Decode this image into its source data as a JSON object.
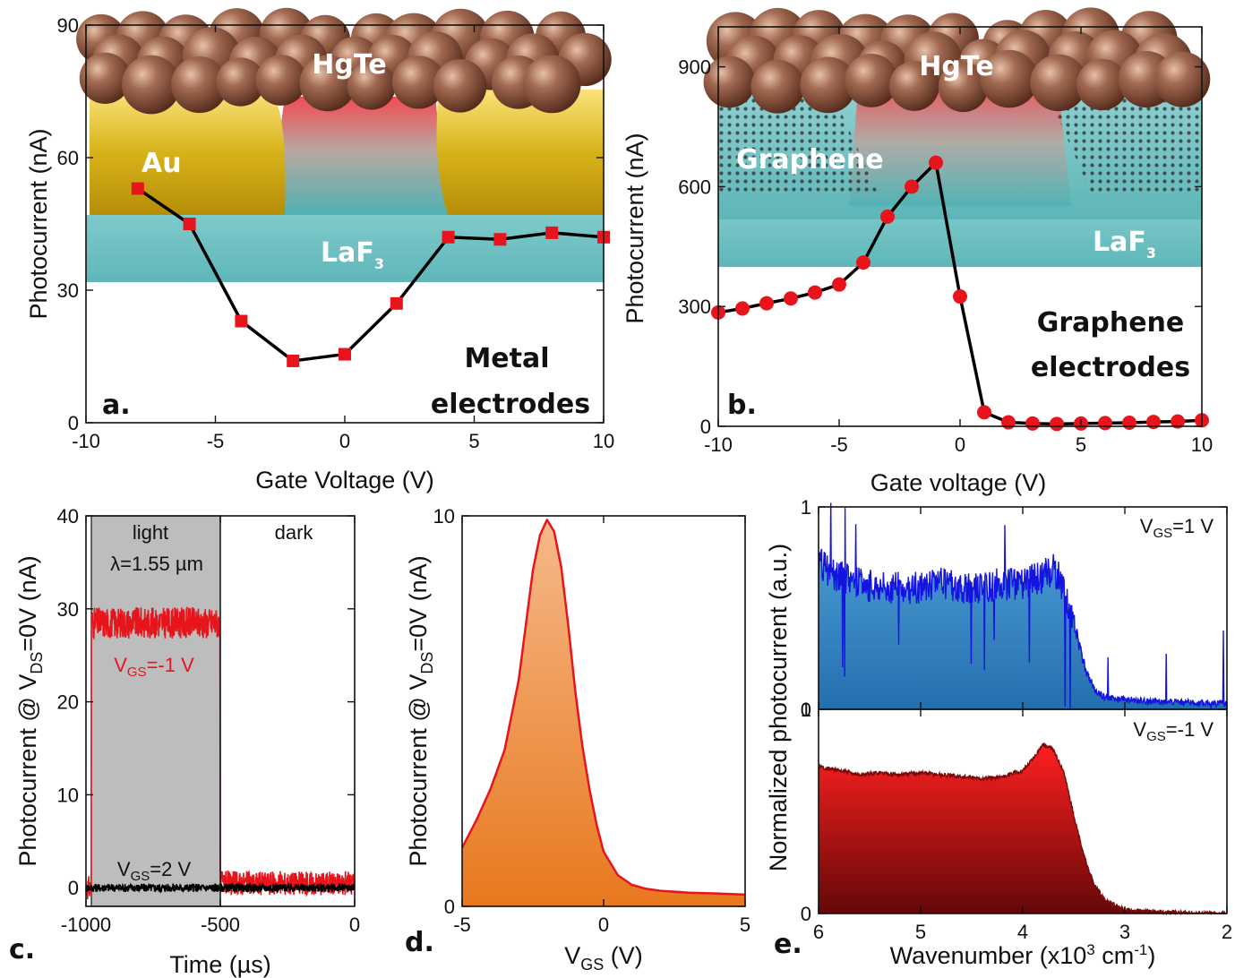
{
  "chart_data": [
    {
      "id": "a",
      "type": "line",
      "panel_label": "a.",
      "xlabel": "Gate Voltage (V)",
      "ylabel": "Photocurrent (nA)",
      "xlim": [
        -10,
        10
      ],
      "ylim": [
        0,
        90
      ],
      "xticks": [
        -10,
        -5,
        0,
        5,
        10
      ],
      "yticks": [
        0,
        30,
        60,
        90
      ],
      "x": [
        -8,
        -6,
        -4,
        -2,
        0,
        2,
        4,
        6,
        8,
        10
      ],
      "y": [
        53,
        45,
        23,
        14,
        15.5,
        27,
        42,
        41.5,
        43,
        42
      ],
      "annotations": [
        "Metal",
        "electrodes"
      ],
      "materials": {
        "top": "HgTe",
        "electrode": "Au",
        "substrate": "LaF",
        "substrate_sub": "3"
      },
      "colors": {
        "marker": "#e8141b",
        "line": "#000000"
      }
    },
    {
      "id": "b",
      "type": "line",
      "panel_label": "b.",
      "xlabel": "Gate voltage (V)",
      "ylabel": "Photocurrent (nA)",
      "xlim": [
        -10,
        10
      ],
      "ylim": [
        0,
        1000
      ],
      "xticks": [
        -10,
        -5,
        0,
        5,
        10
      ],
      "yticks": [
        0,
        300,
        600,
        900
      ],
      "x": [
        -10,
        -9,
        -8,
        -7,
        -6,
        -5,
        -4,
        -3,
        -2,
        -1,
        0,
        1,
        2,
        3,
        4,
        5,
        6,
        7,
        8,
        9,
        10
      ],
      "y": [
        285,
        295,
        308,
        320,
        335,
        355,
        410,
        525,
        600,
        660,
        325,
        35,
        10,
        7,
        6,
        7,
        8,
        9,
        11,
        12,
        15
      ],
      "annotations": [
        "Graphene",
        "electrodes"
      ],
      "materials": {
        "top": "HgTe",
        "electrode": "Graphene",
        "substrate": "LaF",
        "substrate_sub": "3"
      },
      "colors": {
        "marker": "#e8141b",
        "line": "#000000"
      }
    },
    {
      "id": "c",
      "type": "line",
      "panel_label": "c.",
      "xlabel": "Time (µs)",
      "ylabel_parts": [
        "Photocurrent @ V",
        "DS",
        "=0V (nA)"
      ],
      "xlim": [
        -1000,
        0
      ],
      "ylim": [
        -2,
        40
      ],
      "xticks": [
        -1000,
        -500,
        0
      ],
      "yticks": [
        0,
        10,
        20,
        30,
        40
      ],
      "regions": [
        {
          "label": "light",
          "x": [
            -980,
            -500
          ]
        },
        {
          "label": "dark",
          "x": [
            -500,
            0
          ]
        }
      ],
      "wavelength_label": "λ=1.55 µm",
      "series": [
        {
          "name_parts": [
            "V",
            "GS",
            "=-1 V"
          ],
          "segments": [
            {
              "x": [
                -1000,
                -980
              ],
              "y": 0
            },
            {
              "x": [
                -980,
                -500
              ],
              "y": 28.5
            },
            {
              "x": [
                -500,
                0
              ],
              "y": 0.5
            }
          ],
          "color": "#e8141b"
        },
        {
          "name_parts": [
            "V",
            "GS",
            "=2 V"
          ],
          "segments": [
            {
              "x": [
                -1000,
                0
              ],
              "y": 0
            }
          ],
          "color": "#000000"
        }
      ]
    },
    {
      "id": "d",
      "type": "area",
      "panel_label": "d.",
      "xlabel_parts": [
        "V",
        "GS",
        " (V)"
      ],
      "ylabel_parts": [
        "Photocurrent @ V",
        "DS",
        "=0V (nA)"
      ],
      "xlim": [
        -5,
        5
      ],
      "ylim": [
        0,
        10
      ],
      "xticks": [
        -5,
        0,
        5
      ],
      "yticks": [
        0,
        10
      ],
      "x": [
        -5,
        -4.5,
        -4,
        -3.5,
        -3,
        -2.75,
        -2.5,
        -2.25,
        -2,
        -1.75,
        -1.5,
        -1.25,
        -1,
        -0.75,
        -0.5,
        -0.25,
        0,
        0.5,
        1,
        1.5,
        2,
        3,
        4,
        5
      ],
      "y": [
        1.5,
        2.2,
        3.0,
        4.0,
        5.8,
        7.2,
        8.6,
        9.5,
        9.9,
        9.6,
        8.7,
        7.2,
        5.5,
        4.1,
        3.0,
        2.1,
        1.4,
        0.8,
        0.55,
        0.45,
        0.4,
        0.35,
        0.33,
        0.3
      ],
      "colors": {
        "line": "#e8141b",
        "fill_top": "#f2a36a",
        "fill_bottom": "#e87a22"
      }
    },
    {
      "id": "e",
      "type": "area",
      "panel_label": "e.",
      "xlabel_parts": [
        "Wavenumber (x10",
        "3",
        " cm",
        "-1",
        ")"
      ],
      "ylabel": "Normalized photocurrent (a.u.)",
      "xlim": [
        6,
        2
      ],
      "xticks": [
        6,
        5,
        4,
        3,
        2
      ],
      "series": [
        {
          "name_parts": [
            "V",
            "GS",
            "=1 V"
          ],
          "ylim": [
            0,
            1
          ],
          "yticks": [
            0,
            1
          ],
          "x": [
            6,
            5.8,
            5.6,
            5.4,
            5.2,
            5.0,
            4.8,
            4.6,
            4.4,
            4.2,
            4.0,
            3.8,
            3.7,
            3.6,
            3.5,
            3.4,
            3.3,
            3.2,
            3.0,
            2.8,
            2.6,
            2.4,
            2.2,
            2.0
          ],
          "y": [
            0.72,
            0.66,
            0.62,
            0.6,
            0.6,
            0.6,
            0.62,
            0.6,
            0.6,
            0.62,
            0.62,
            0.66,
            0.7,
            0.6,
            0.42,
            0.22,
            0.1,
            0.06,
            0.05,
            0.04,
            0.04,
            0.035,
            0.03,
            0.03
          ],
          "colors": {
            "line": "#1414e0",
            "fill": "#2e86c8"
          }
        },
        {
          "name_parts": [
            "V",
            "GS",
            "=-1 V"
          ],
          "ylim": [
            0,
            1
          ],
          "yticks": [
            0,
            1
          ],
          "x": [
            6,
            5.8,
            5.6,
            5.4,
            5.2,
            5.0,
            4.8,
            4.6,
            4.4,
            4.2,
            4.0,
            3.9,
            3.8,
            3.7,
            3.6,
            3.5,
            3.4,
            3.3,
            3.2,
            3.1,
            3.0,
            2.8,
            2.5,
            2.0
          ],
          "y": [
            0.72,
            0.7,
            0.68,
            0.69,
            0.68,
            0.69,
            0.68,
            0.67,
            0.66,
            0.67,
            0.7,
            0.76,
            0.83,
            0.8,
            0.7,
            0.48,
            0.28,
            0.14,
            0.07,
            0.04,
            0.02,
            0.01,
            0.005,
            0.0
          ],
          "colors": {
            "line": "#7a0a0a",
            "fill_top": "#ff1a1a",
            "fill_bottom": "#6e0a0a"
          }
        }
      ]
    }
  ]
}
